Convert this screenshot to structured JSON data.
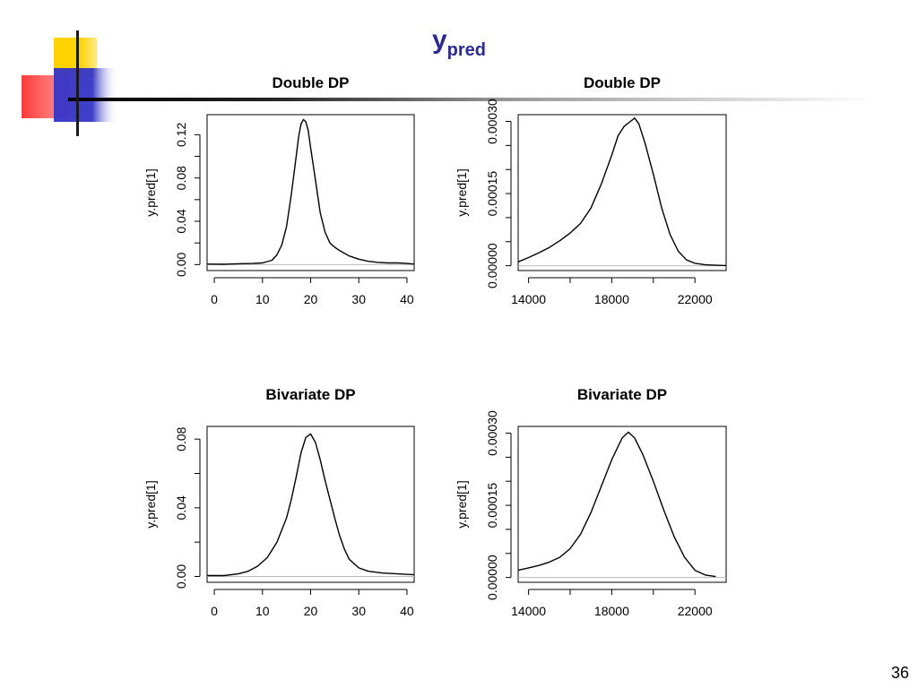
{
  "slide": {
    "title_main": "y",
    "title_sub": "pred",
    "page_number": "36"
  },
  "colors": {
    "title": "#2b2b8f",
    "deco_yellow": "#ffd200",
    "deco_red": "#ff3030",
    "deco_blue": "#3535c8",
    "curve": "#000000",
    "zero_line": "#bbbbbb"
  },
  "chart_data": [
    {
      "type": "line",
      "title": "Double DP",
      "xlabel": "",
      "ylabel": "y.pred[1]",
      "xlim": [
        -1.5,
        41.5
      ],
      "ylim": [
        -0.0055,
        0.1385
      ],
      "xticks": [
        0,
        10,
        20,
        30,
        40
      ],
      "xtick_labels": [
        "0",
        "10",
        "20",
        "30",
        "40"
      ],
      "yticks": [
        0,
        0.02,
        0.04,
        0.06,
        0.08,
        0.1,
        0.12
      ],
      "ytick_labels": [
        "0.00",
        "",
        "0.04",
        "",
        "0.08",
        "",
        "0.12"
      ],
      "x": [
        -1.5,
        2,
        5,
        8,
        10,
        12,
        13,
        14,
        15,
        16,
        17,
        17.5,
        18,
        18.5,
        19,
        19.5,
        20,
        21,
        22,
        23,
        24,
        25,
        26,
        28,
        30,
        32,
        34,
        36,
        38,
        40,
        41.5
      ],
      "y": [
        0.0005,
        0.0003,
        0.0008,
        0.001,
        0.0015,
        0.004,
        0.009,
        0.018,
        0.035,
        0.065,
        0.1,
        0.118,
        0.13,
        0.134,
        0.132,
        0.124,
        0.108,
        0.078,
        0.048,
        0.03,
        0.02,
        0.016,
        0.013,
        0.008,
        0.005,
        0.003,
        0.002,
        0.0015,
        0.0015,
        0.001,
        0.0005
      ]
    },
    {
      "type": "line",
      "title": "Double DP",
      "xlabel": "",
      "ylabel": "y.pred[1]",
      "xlim": [
        13500,
        23500
      ],
      "ylim": [
        -1e-05,
        0.000314
      ],
      "xticks": [
        14000,
        16000,
        18000,
        20000,
        22000
      ],
      "xtick_labels": [
        "14000",
        "",
        "18000",
        "",
        "22000"
      ],
      "yticks": [
        0,
        5e-05,
        0.0001,
        0.00015,
        0.0002,
        0.00025,
        0.0003
      ],
      "ytick_labels": [
        "0.00000",
        "",
        "",
        "0.00015",
        "",
        "",
        "0.00030"
      ],
      "x": [
        13500,
        14000,
        14500,
        15000,
        15500,
        16000,
        16500,
        17000,
        17500,
        18000,
        18300,
        18600,
        18900,
        19100,
        19300,
        19600,
        20000,
        20400,
        20800,
        21200,
        21600,
        22000,
        22500,
        23000,
        23500
      ],
      "y": [
        8e-06,
        1.7e-05,
        2.7e-05,
        3.8e-05,
        5.2e-05,
        6.8e-05,
        8.8e-05,
        0.00012,
        0.00017,
        0.00023,
        0.00027,
        0.00029,
        0.0003,
        0.000307,
        0.000295,
        0.000255,
        0.00019,
        0.00012,
        6.5e-05,
        3e-05,
        1.2e-05,
        5e-06,
        2e-06,
        1e-06,
        5e-07
      ]
    },
    {
      "type": "line",
      "title": "Bivariate DP",
      "xlabel": "",
      "ylabel": "y.pred[1]",
      "xlim": [
        -1.5,
        41.5
      ],
      "ylim": [
        -0.0034,
        0.0874
      ],
      "xticks": [
        0,
        10,
        20,
        30,
        40
      ],
      "xtick_labels": [
        "0",
        "10",
        "20",
        "30",
        "40"
      ],
      "yticks": [
        0,
        0.02,
        0.04,
        0.06,
        0.08
      ],
      "ytick_labels": [
        "0.00",
        "",
        "0.04",
        "",
        "0.08"
      ],
      "x": [
        -1.5,
        2,
        5,
        7,
        9,
        11,
        13,
        15,
        16,
        17,
        18,
        19,
        20,
        21,
        22,
        23,
        24,
        25,
        26,
        27,
        28,
        30,
        32,
        35,
        38,
        41.5
      ],
      "y": [
        0.0005,
        0.0005,
        0.0015,
        0.003,
        0.006,
        0.011,
        0.02,
        0.034,
        0.045,
        0.058,
        0.072,
        0.081,
        0.083,
        0.078,
        0.068,
        0.056,
        0.045,
        0.034,
        0.024,
        0.016,
        0.01,
        0.005,
        0.003,
        0.002,
        0.0015,
        0.001
      ]
    },
    {
      "type": "line",
      "title": "Bivariate DP",
      "xlabel": "",
      "ylabel": "y.pred[1]",
      "xlim": [
        13500,
        23500
      ],
      "ylim": [
        -1e-05,
        0.000314
      ],
      "xticks": [
        14000,
        16000,
        18000,
        20000,
        22000
      ],
      "xtick_labels": [
        "14000",
        "",
        "18000",
        "",
        "22000"
      ],
      "yticks": [
        0,
        5e-05,
        0.0001,
        0.00015,
        0.0002,
        0.00025,
        0.0003
      ],
      "ytick_labels": [
        "0.00000",
        "",
        "",
        "0.00015",
        "",
        "",
        "0.00030"
      ],
      "x": [
        13500,
        14000,
        14500,
        15000,
        15500,
        16000,
        16500,
        17000,
        17500,
        18000,
        18500,
        18800,
        19100,
        19500,
        20000,
        20500,
        21000,
        21500,
        22000,
        22500,
        23000
      ],
      "y": [
        1.5e-05,
        2e-05,
        2.5e-05,
        3.2e-05,
        4.2e-05,
        6e-05,
        9e-05,
        0.000135,
        0.00019,
        0.000245,
        0.00029,
        0.000302,
        0.00029,
        0.000255,
        0.0002,
        0.00014,
        8.5e-05,
        4.2e-05,
        1.5e-05,
        5e-06,
        2e-06
      ]
    }
  ]
}
